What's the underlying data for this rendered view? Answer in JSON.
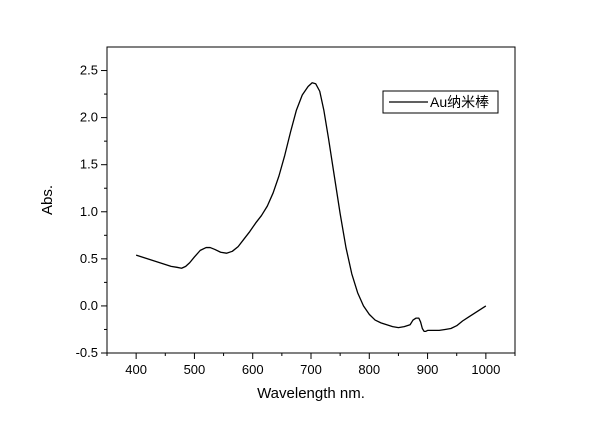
{
  "chart_data": {
    "type": "line",
    "xlabel": "Wavelength nm.",
    "ylabel": "Abs.",
    "xlim": [
      350,
      1050
    ],
    "ylim": [
      -0.5,
      2.75
    ],
    "xticks": [
      400,
      500,
      600,
      700,
      800,
      900,
      1000
    ],
    "yticks": [
      -0.5,
      0.0,
      0.5,
      1.0,
      1.5,
      2.0,
      2.5
    ],
    "xtick_labels": [
      "400",
      "500",
      "600",
      "700",
      "800",
      "900",
      "1000"
    ],
    "ytick_labels": [
      "-0.5",
      "0.0",
      "0.5",
      "1.0",
      "1.5",
      "2.0",
      "2.5"
    ],
    "grid": false,
    "legend": {
      "position": "top-right",
      "entries": [
        "Au纳米棒"
      ]
    },
    "series": [
      {
        "name": "Au纳米棒",
        "color": "#000000",
        "x": [
          400,
          420,
          440,
          460,
          470,
          478,
          485,
          492,
          500,
          510,
          520,
          527,
          535,
          545,
          555,
          565,
          575,
          585,
          595,
          605,
          615,
          625,
          635,
          645,
          655,
          665,
          675,
          685,
          695,
          702,
          708,
          715,
          722,
          730,
          740,
          750,
          760,
          770,
          780,
          790,
          800,
          810,
          820,
          830,
          840,
          850,
          860,
          870,
          875,
          880,
          885,
          888,
          891,
          894,
          897,
          900,
          910,
          920,
          930,
          940,
          950,
          960,
          970,
          980,
          990,
          1000
        ],
        "y": [
          0.54,
          0.5,
          0.46,
          0.42,
          0.41,
          0.4,
          0.42,
          0.46,
          0.52,
          0.59,
          0.62,
          0.62,
          0.6,
          0.57,
          0.56,
          0.58,
          0.63,
          0.71,
          0.79,
          0.88,
          0.96,
          1.06,
          1.2,
          1.38,
          1.6,
          1.85,
          2.08,
          2.24,
          2.33,
          2.37,
          2.36,
          2.28,
          2.08,
          1.78,
          1.38,
          0.98,
          0.62,
          0.34,
          0.14,
          0.0,
          -0.09,
          -0.15,
          -0.18,
          -0.2,
          -0.22,
          -0.23,
          -0.22,
          -0.2,
          -0.15,
          -0.13,
          -0.13,
          -0.17,
          -0.24,
          -0.27,
          -0.27,
          -0.26,
          -0.26,
          -0.26,
          -0.25,
          -0.24,
          -0.21,
          -0.16,
          -0.12,
          -0.08,
          -0.04,
          0.0
        ]
      }
    ]
  }
}
